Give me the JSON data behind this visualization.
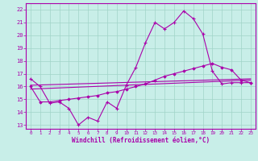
{
  "xlabel": "Windchill (Refroidissement éolien,°C)",
  "bg_color": "#c8eee8",
  "grid_color": "#a0d4c8",
  "line_color": "#aa00aa",
  "border_color": "#aa00aa",
  "xlim": [
    -0.5,
    23.5
  ],
  "ylim": [
    12.7,
    22.5
  ],
  "yticks": [
    13,
    14,
    15,
    16,
    17,
    18,
    19,
    20,
    21,
    22
  ],
  "xticks": [
    0,
    1,
    2,
    3,
    4,
    5,
    6,
    7,
    8,
    9,
    10,
    11,
    12,
    13,
    14,
    15,
    16,
    17,
    18,
    19,
    20,
    21,
    22,
    23
  ],
  "line1_x": [
    0,
    1,
    2,
    3,
    4,
    5,
    6,
    7,
    8,
    9,
    10,
    11,
    12,
    13,
    14,
    15,
    16,
    17,
    18,
    19,
    20,
    21,
    22,
    23
  ],
  "line1_y": [
    16.6,
    16.0,
    14.7,
    14.8,
    14.3,
    13.0,
    13.6,
    13.3,
    14.8,
    14.3,
    16.1,
    17.5,
    19.4,
    21.0,
    20.5,
    21.0,
    21.9,
    21.3,
    20.1,
    17.2,
    16.2,
    16.3,
    16.3,
    16.3
  ],
  "line2_x": [
    0,
    1,
    2,
    3,
    4,
    5,
    6,
    7,
    8,
    9,
    10,
    11,
    12,
    13,
    14,
    15,
    16,
    17,
    18,
    19,
    20,
    21,
    22,
    23
  ],
  "line2_y": [
    16.0,
    14.8,
    14.8,
    14.9,
    15.0,
    15.1,
    15.2,
    15.3,
    15.5,
    15.6,
    15.8,
    16.0,
    16.2,
    16.5,
    16.8,
    17.0,
    17.2,
    17.4,
    17.6,
    17.8,
    17.5,
    17.3,
    16.5,
    16.3
  ],
  "line3_x": [
    0,
    23
  ],
  "line3_y": [
    15.8,
    16.5
  ],
  "line4_x": [
    0,
    23
  ],
  "line4_y": [
    16.1,
    16.6
  ]
}
